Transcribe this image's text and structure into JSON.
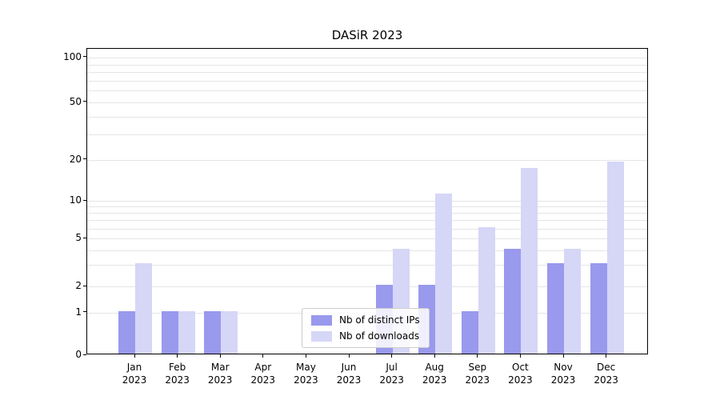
{
  "title": "DASiR 2023",
  "chart_data": {
    "type": "bar",
    "title": "DASiR 2023",
    "scale": "symlog",
    "categories": [
      {
        "month": "Jan",
        "year": "2023"
      },
      {
        "month": "Feb",
        "year": "2023"
      },
      {
        "month": "Mar",
        "year": "2023"
      },
      {
        "month": "Apr",
        "year": "2023"
      },
      {
        "month": "May",
        "year": "2023"
      },
      {
        "month": "Jun",
        "year": "2023"
      },
      {
        "month": "Jul",
        "year": "2023"
      },
      {
        "month": "Aug",
        "year": "2023"
      },
      {
        "month": "Sep",
        "year": "2023"
      },
      {
        "month": "Oct",
        "year": "2023"
      },
      {
        "month": "Nov",
        "year": "2023"
      },
      {
        "month": "Dec",
        "year": "2023"
      }
    ],
    "series": [
      {
        "name": "Nb of distinct IPs",
        "color": "#9999ee",
        "values": [
          1,
          1,
          1,
          0,
          0,
          0,
          2,
          2,
          1,
          4,
          3,
          3
        ]
      },
      {
        "name": "Nb of downloads",
        "color": "#d6d6f7",
        "values": [
          3,
          1,
          1,
          0,
          0,
          0,
          4,
          11,
          6,
          17,
          4,
          19
        ]
      }
    ],
    "y_axis": {
      "major_ticks": [
        0,
        1,
        2,
        5,
        10,
        20,
        50,
        100
      ],
      "tick_labels": [
        "0",
        "1",
        "2",
        "5",
        "10",
        "20",
        "50",
        "100"
      ],
      "minor_gridlines": [
        3,
        4,
        6,
        7,
        8,
        9,
        30,
        40,
        60,
        70,
        80,
        90
      ],
      "grid": true
    },
    "xlabel": "",
    "ylabel": "",
    "legend": {
      "position": "lower center"
    }
  }
}
